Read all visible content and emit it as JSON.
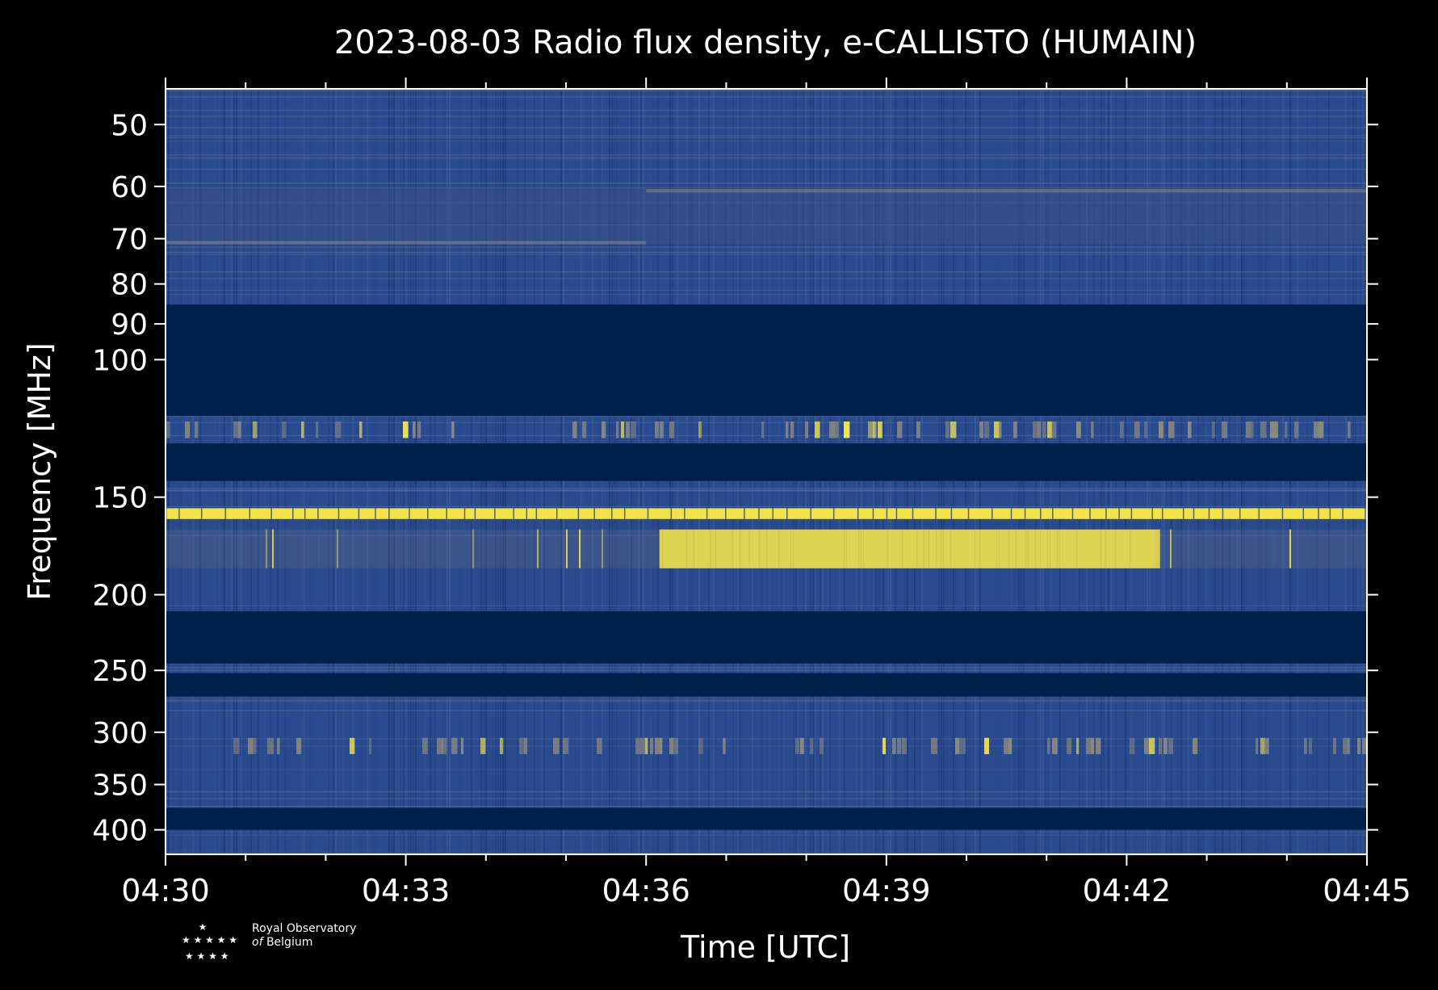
{
  "chart_data": {
    "type": "heatmap",
    "title": "2023-08-03 Radio flux density, e-CALLISTO (HUMAIN)",
    "xlabel": "Time [UTC]",
    "ylabel": "Frequency [MHz]",
    "xlim": [
      "04:30",
      "04:45"
    ],
    "ylim": [
      45,
      430
    ],
    "y_scale": "log",
    "x_tick_labels": [
      "04:30",
      "04:33",
      "04:36",
      "04:39",
      "04:42",
      "04:45"
    ],
    "x_minor_ticks_minutes": [
      1,
      2,
      4,
      5,
      7,
      8,
      10,
      11,
      13,
      14
    ],
    "y_tick_labels": [
      "50",
      "60",
      "70",
      "80",
      "90",
      "100",
      "150",
      "200",
      "250",
      "300",
      "350",
      "400"
    ],
    "y_tick_values": [
      50,
      60,
      70,
      80,
      90,
      100,
      150,
      200,
      250,
      300,
      350,
      400
    ],
    "colormap": "cividis",
    "colors": {
      "low": "#00204c",
      "mid": "#2a4a8e",
      "gray": "#8c8a7e",
      "high": "#f2e34a",
      "background": "#000000"
    },
    "grid": false,
    "features": [
      {
        "kind": "continuous-band",
        "freq_mhz": [
          155,
          160
        ],
        "time": [
          "04:30",
          "04:45"
        ],
        "level": "high"
      },
      {
        "kind": "bright-region",
        "freq_mhz": [
          165,
          185
        ],
        "time": [
          "04:36:10",
          "04:42:25"
        ],
        "level": "high"
      },
      {
        "kind": "faint-drifting-band",
        "freq_mhz": [
          60,
          71
        ],
        "time": [
          "04:30",
          "04:45"
        ],
        "level": "mid"
      },
      {
        "kind": "masked-band",
        "freq_mhz": [
          85,
          118
        ],
        "level": "low"
      },
      {
        "kind": "masked-band",
        "freq_mhz": [
          128,
          143
        ],
        "level": "low"
      },
      {
        "kind": "masked-band",
        "freq_mhz": [
          210,
          245
        ],
        "level": "low"
      },
      {
        "kind": "masked-band",
        "freq_mhz": [
          252,
          270
        ],
        "level": "low"
      },
      {
        "kind": "masked-band",
        "freq_mhz": [
          375,
          400
        ],
        "level": "low"
      },
      {
        "kind": "sporadic-bursts",
        "freq_mhz": [
          120,
          126
        ],
        "time": [
          "04:30",
          "04:45"
        ],
        "level": "mid-high"
      },
      {
        "kind": "sporadic-bursts",
        "freq_mhz": [
          305,
          320
        ],
        "time": [
          "04:30",
          "04:45"
        ],
        "level": "mid-high"
      }
    ]
  },
  "logo": {
    "line1": "Royal Observatory",
    "line2": "of",
    "line3": "Belgium"
  }
}
